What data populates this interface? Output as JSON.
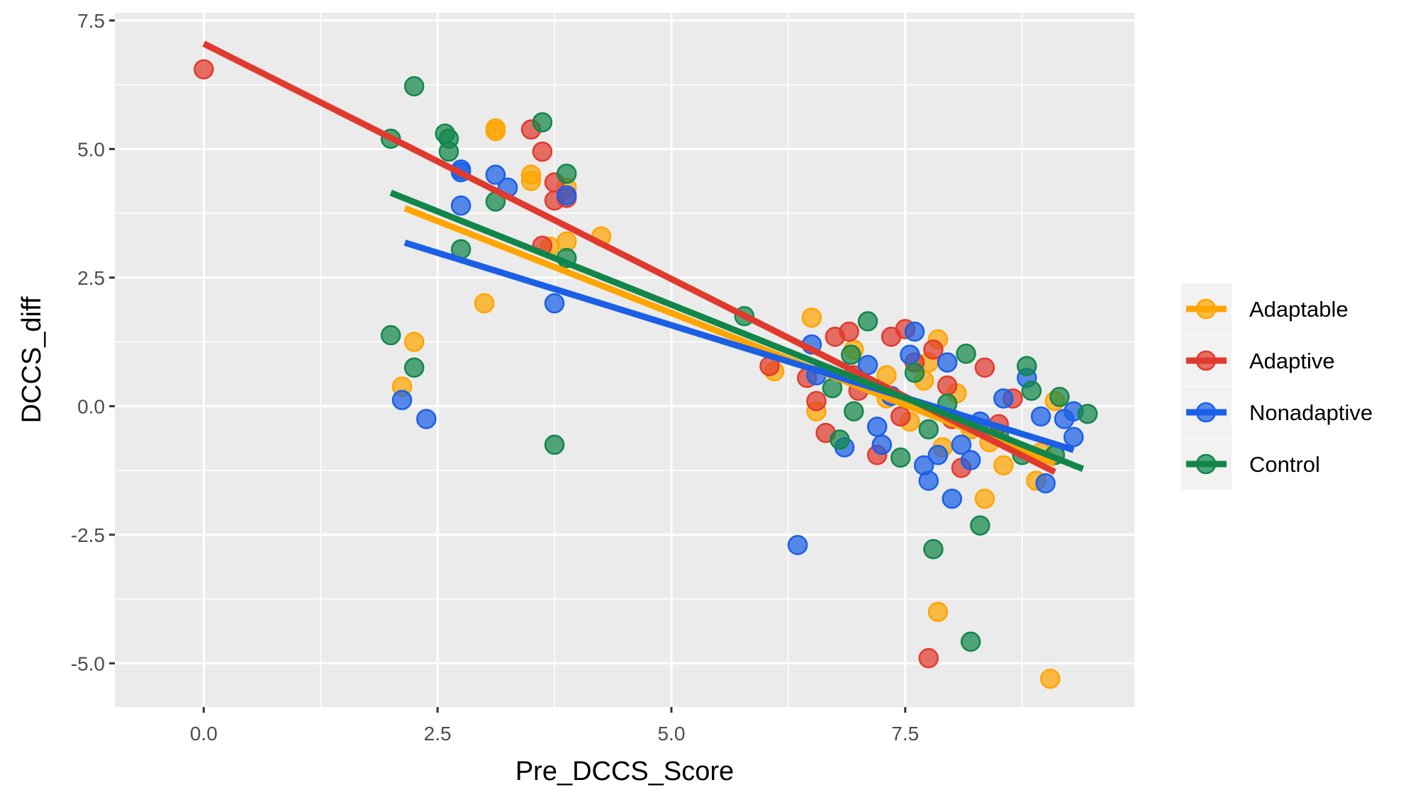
{
  "chart_data": {
    "type": "scatter",
    "title": "",
    "xlabel": "Pre_DCCS_Score",
    "ylabel": "DCCS_diff",
    "xlim": [
      -0.95,
      9.95
    ],
    "ylim": [
      -5.85,
      7.65
    ],
    "x_ticks": [
      {
        "value": 0,
        "label": "0.0"
      },
      {
        "value": 2.5,
        "label": "2.5"
      },
      {
        "value": 5,
        "label": "5.0"
      },
      {
        "value": 7.5,
        "label": "7.5"
      }
    ],
    "y_ticks": [
      {
        "value": 7.5,
        "label": "7.5"
      },
      {
        "value": 5,
        "label": "5.0"
      },
      {
        "value": 2.5,
        "label": "2.5"
      },
      {
        "value": 0,
        "label": "0.0"
      },
      {
        "value": -2.5,
        "label": "-2.5"
      },
      {
        "value": -5,
        "label": "-5.0"
      }
    ],
    "grid": true,
    "legend_position": "right",
    "series": [
      {
        "name": "Adaptable",
        "color": "#FFA500",
        "fit": {
          "x": [
            2.15,
            9.1
          ],
          "y": [
            3.85,
            -1.12
          ]
        },
        "points": [
          [
            2.12,
            0.38
          ],
          [
            2.25,
            1.25
          ],
          [
            3.0,
            2.0
          ],
          [
            3.12,
            5.4
          ],
          [
            3.12,
            5.35
          ],
          [
            3.5,
            4.5
          ],
          [
            3.5,
            4.38
          ],
          [
            3.7,
            3.1
          ],
          [
            3.88,
            3.2
          ],
          [
            3.88,
            4.25
          ],
          [
            4.25,
            3.3
          ],
          [
            6.1,
            0.68
          ],
          [
            6.5,
            1.72
          ],
          [
            6.55,
            -0.1
          ],
          [
            6.95,
            1.1
          ],
          [
            7.3,
            0.15
          ],
          [
            7.55,
            -0.3
          ],
          [
            7.7,
            0.5
          ],
          [
            7.75,
            0.85
          ],
          [
            7.85,
            1.3
          ],
          [
            7.9,
            -0.8
          ],
          [
            8.05,
            0.25
          ],
          [
            8.2,
            -0.45
          ],
          [
            8.35,
            -1.8
          ],
          [
            8.4,
            -0.7
          ],
          [
            8.55,
            -1.15
          ],
          [
            8.9,
            -1.45
          ],
          [
            8.95,
            -0.9
          ],
          [
            9.1,
            0.1
          ],
          [
            9.05,
            -5.3
          ],
          [
            7.85,
            -4.0
          ],
          [
            7.3,
            0.6
          ]
        ]
      },
      {
        "name": "Adaptive",
        "color": "#E03A2E",
        "fit": {
          "x": [
            0.0,
            9.1
          ],
          "y": [
            7.05,
            -1.28
          ]
        },
        "points": [
          [
            0.0,
            6.55
          ],
          [
            3.5,
            5.38
          ],
          [
            3.62,
            4.95
          ],
          [
            3.75,
            4.35
          ],
          [
            3.75,
            4.0
          ],
          [
            3.88,
            4.05
          ],
          [
            3.62,
            3.12
          ],
          [
            6.05,
            0.78
          ],
          [
            6.45,
            0.55
          ],
          [
            6.55,
            0.1
          ],
          [
            6.65,
            -0.52
          ],
          [
            6.75,
            1.35
          ],
          [
            6.9,
            1.45
          ],
          [
            6.95,
            0.6
          ],
          [
            7.0,
            0.3
          ],
          [
            7.2,
            -0.95
          ],
          [
            7.35,
            1.35
          ],
          [
            7.5,
            1.5
          ],
          [
            7.6,
            0.85
          ],
          [
            7.8,
            1.1
          ],
          [
            7.95,
            0.4
          ],
          [
            8.1,
            -1.2
          ],
          [
            8.35,
            0.75
          ],
          [
            8.5,
            -0.35
          ],
          [
            8.65,
            0.15
          ],
          [
            7.75,
            -4.9
          ],
          [
            8.0,
            -0.25
          ],
          [
            7.45,
            -0.2
          ]
        ]
      },
      {
        "name": "Nonadaptive",
        "color": "#1A5FE6",
        "fit": {
          "x": [
            2.15,
            9.3
          ],
          "y": [
            3.18,
            -0.85
          ]
        },
        "points": [
          [
            2.12,
            0.12
          ],
          [
            2.38,
            -0.25
          ],
          [
            2.75,
            4.6
          ],
          [
            2.75,
            4.55
          ],
          [
            2.75,
            3.9
          ],
          [
            3.12,
            4.5
          ],
          [
            3.25,
            4.25
          ],
          [
            3.75,
            2.0
          ],
          [
            3.88,
            4.1
          ],
          [
            6.35,
            -2.7
          ],
          [
            6.5,
            1.2
          ],
          [
            6.55,
            0.6
          ],
          [
            6.85,
            -0.8
          ],
          [
            7.1,
            0.8
          ],
          [
            7.2,
            -0.4
          ],
          [
            7.25,
            -0.75
          ],
          [
            7.35,
            0.2
          ],
          [
            7.55,
            1.0
          ],
          [
            7.6,
            1.45
          ],
          [
            7.7,
            -1.15
          ],
          [
            7.75,
            -1.45
          ],
          [
            7.85,
            -0.95
          ],
          [
            7.95,
            0.85
          ],
          [
            8.0,
            -1.8
          ],
          [
            8.1,
            -0.75
          ],
          [
            8.2,
            -1.05
          ],
          [
            8.3,
            -0.3
          ],
          [
            8.55,
            0.15
          ],
          [
            8.8,
            0.55
          ],
          [
            8.95,
            -0.2
          ],
          [
            9.0,
            -1.5
          ],
          [
            9.2,
            -0.25
          ],
          [
            9.3,
            -0.1
          ],
          [
            9.3,
            -0.6
          ]
        ]
      },
      {
        "name": "Control",
        "color": "#12864A",
        "fit": {
          "x": [
            2.0,
            9.4
          ],
          "y": [
            4.15,
            -1.22
          ]
        },
        "points": [
          [
            2.0,
            5.2
          ],
          [
            2.25,
            6.22
          ],
          [
            2.58,
            5.3
          ],
          [
            2.62,
            5.2
          ],
          [
            2.62,
            4.95
          ],
          [
            2.75,
            3.05
          ],
          [
            3.12,
            3.98
          ],
          [
            3.62,
            5.52
          ],
          [
            3.88,
            4.52
          ],
          [
            3.88,
            2.88
          ],
          [
            3.75,
            -0.75
          ],
          [
            2.0,
            1.38
          ],
          [
            2.25,
            0.75
          ],
          [
            5.78,
            1.75
          ],
          [
            6.72,
            0.35
          ],
          [
            6.8,
            -0.65
          ],
          [
            6.92,
            1.0
          ],
          [
            6.95,
            -0.1
          ],
          [
            7.1,
            1.65
          ],
          [
            7.45,
            -1.0
          ],
          [
            7.6,
            0.65
          ],
          [
            7.75,
            -0.45
          ],
          [
            7.8,
            -2.78
          ],
          [
            7.95,
            0.05
          ],
          [
            8.15,
            1.02
          ],
          [
            8.2,
            -4.58
          ],
          [
            8.3,
            -2.32
          ],
          [
            8.5,
            -0.55
          ],
          [
            8.75,
            -0.95
          ],
          [
            8.8,
            0.78
          ],
          [
            8.85,
            0.3
          ],
          [
            9.1,
            -0.95
          ],
          [
            9.15,
            0.18
          ],
          [
            9.45,
            -0.15
          ]
        ]
      }
    ]
  }
}
